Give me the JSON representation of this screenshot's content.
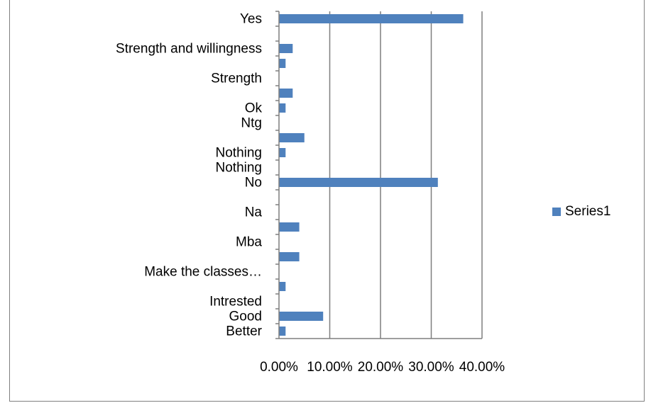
{
  "chart_data": {
    "type": "bar",
    "orientation": "horizontal",
    "categories": [
      "Better",
      "Good",
      "Intrested",
      "",
      "Make the classes…",
      "",
      "Mba",
      "",
      "Na",
      "",
      "No",
      "Nothing",
      "Nothing",
      "",
      "Ntg",
      "Ok",
      "",
      "Strength",
      "",
      "Strength and willingness",
      "",
      "Yes"
    ],
    "series": [
      {
        "name": "Series1",
        "values": [
          1.3,
          8.7,
          0,
          1.3,
          0,
          4.0,
          0,
          4.0,
          0,
          0,
          31.3,
          0,
          1.3,
          5.0,
          0,
          1.3,
          2.7,
          0,
          1.3,
          2.7,
          0,
          36.3
        ]
      }
    ],
    "xlim": [
      0,
      40
    ],
    "xticks": [
      "0.00%",
      "10.00%",
      "20.00%",
      "30.00%",
      "40.00%"
    ],
    "title": "",
    "xlabel": "",
    "ylabel": "",
    "grid": "vertical",
    "legend_position": "right",
    "colors": {
      "bar": "#4f81bd",
      "grid": "#7f7f7f",
      "axis": "#7f7f7f"
    }
  }
}
